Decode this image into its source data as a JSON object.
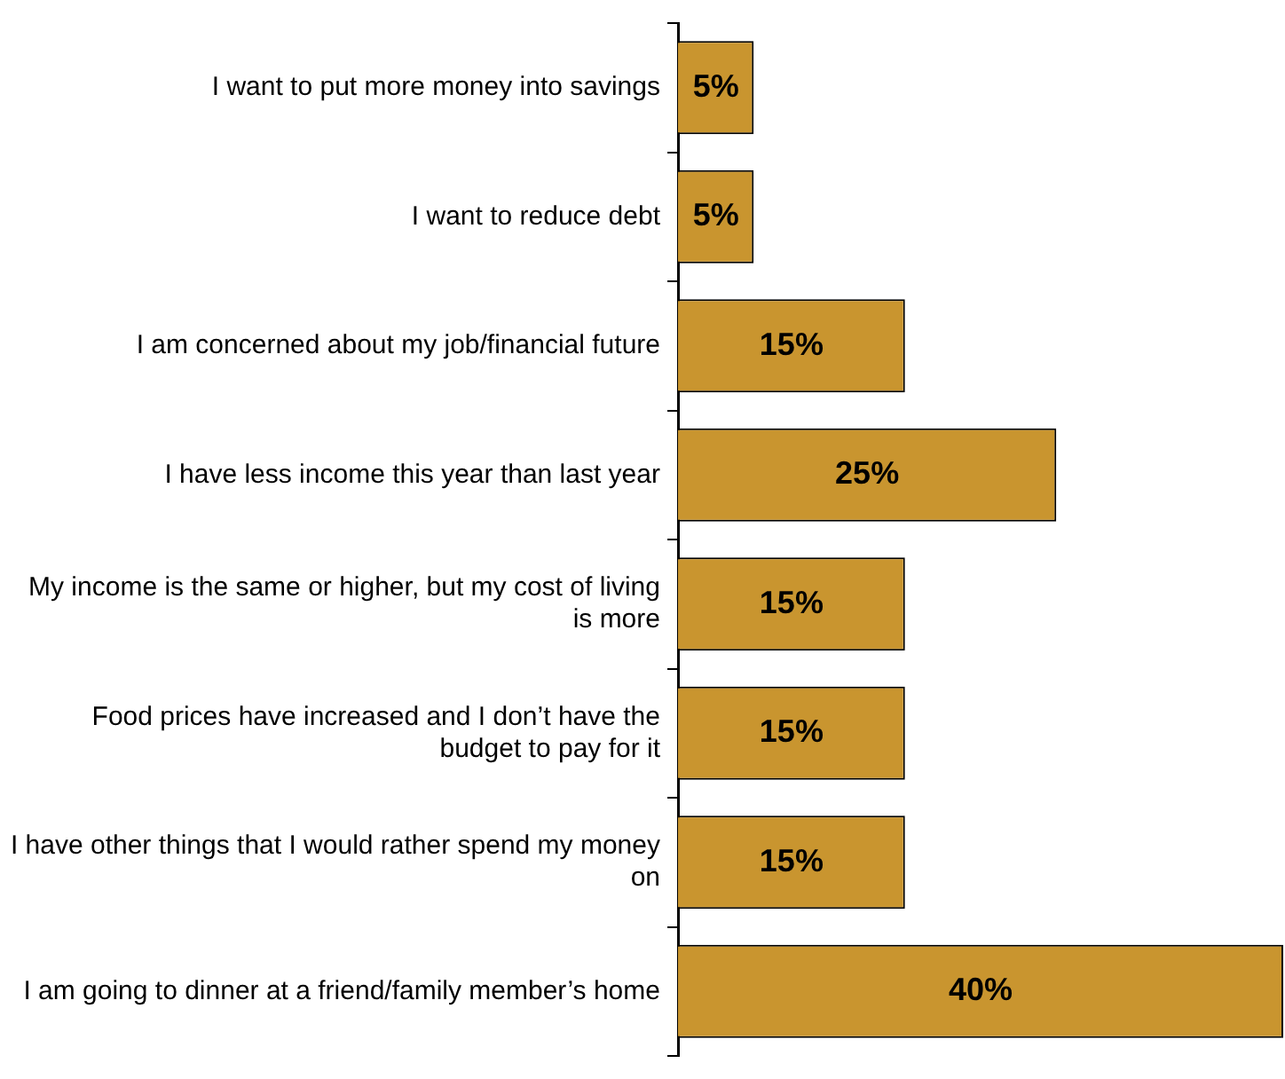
{
  "chart_data": {
    "type": "bar",
    "orientation": "horizontal",
    "categories": [
      "I want to put more money into savings",
      "I want to reduce debt",
      "I am concerned about my job/financial future",
      "I have less income this year than last year",
      "My income is the same or higher, but my cost of living is more",
      "Food prices have increased and I don’t have the budget to pay for it",
      "I have other things that I would rather spend my money on",
      "I am going to dinner at a friend/family member’s home"
    ],
    "values": [
      5,
      5,
      15,
      25,
      15,
      15,
      15,
      40
    ],
    "value_labels": [
      "5%",
      "5%",
      "15%",
      "25%",
      "15%",
      "15%",
      "15%",
      "40%"
    ],
    "color": "#c9952f",
    "legend": false,
    "grid": false
  }
}
